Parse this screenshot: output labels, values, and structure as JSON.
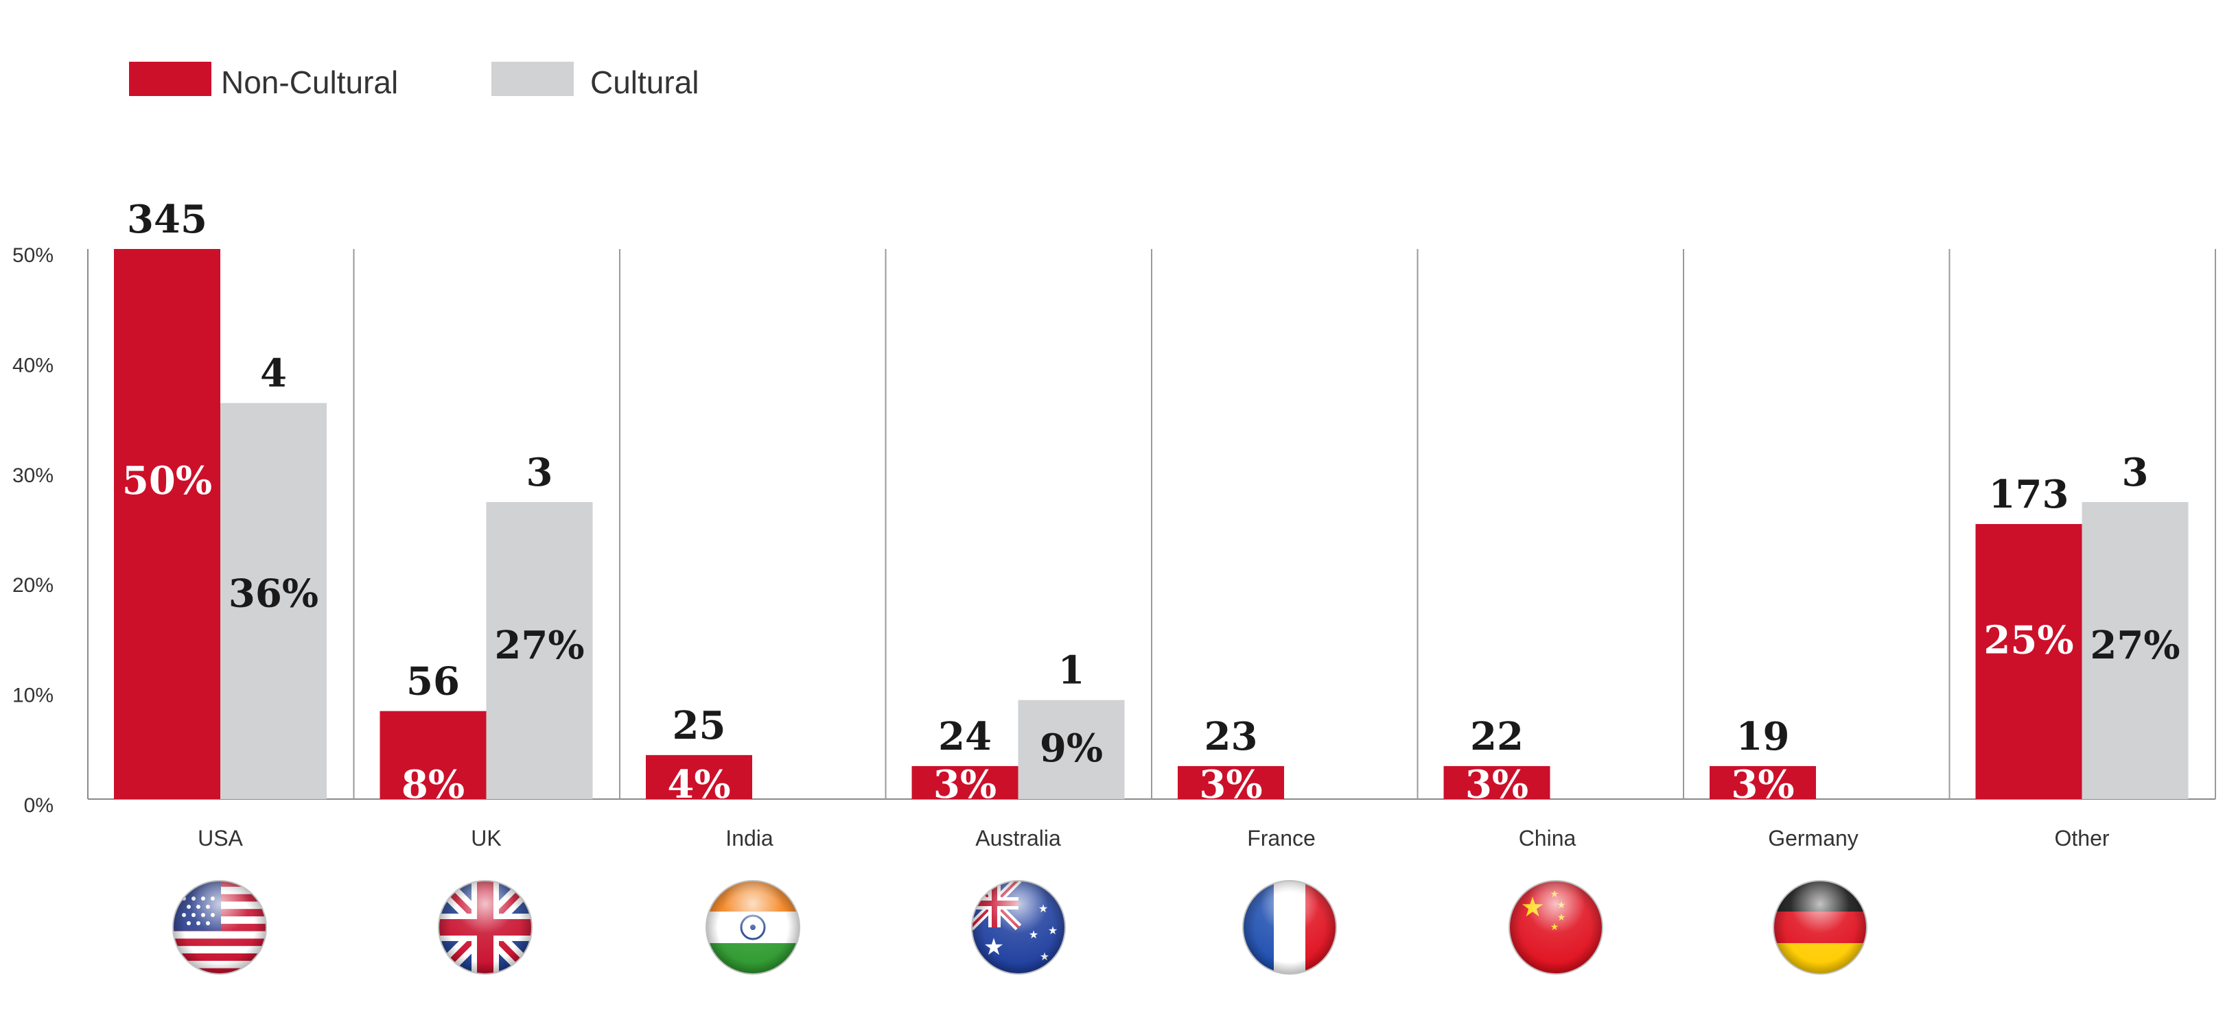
{
  "chart_data": {
    "type": "bar",
    "categories": [
      "USA",
      "UK",
      "India",
      "Australia",
      "France",
      "China",
      "Germany",
      "Other"
    ],
    "series": [
      {
        "name": "Non-Cultural",
        "color": "#cc102a",
        "values": [
          50,
          8,
          4,
          3,
          3,
          3,
          3,
          25
        ],
        "percent_labels": [
          "50%",
          "8%",
          "4%",
          "3%",
          "3%",
          "3%",
          "3%",
          "25%"
        ],
        "count_labels": [
          "345",
          "56",
          "25",
          "24",
          "23",
          "22",
          "19",
          "173"
        ]
      },
      {
        "name": "Cultural",
        "color": "#d1d2d4",
        "values": [
          36,
          27,
          null,
          9,
          null,
          null,
          null,
          27
        ],
        "percent_labels": [
          "36%",
          "27%",
          "",
          "9%",
          "",
          "",
          "",
          "27%"
        ],
        "count_labels": [
          "4",
          "3",
          "",
          "1",
          "",
          "",
          "",
          "3"
        ]
      }
    ],
    "ylim": [
      0,
      50
    ],
    "yticks": [
      0,
      10,
      20,
      30,
      40,
      50
    ],
    "ytick_labels": [
      "0%",
      "10%",
      "20%",
      "30%",
      "40%",
      "50%"
    ],
    "legend": "top-left",
    "grid": false,
    "flag_icons": [
      "usa-flag-icon",
      "uk-flag-icon",
      "india-flag-icon",
      "australia-flag-icon",
      "france-flag-icon",
      "china-flag-icon",
      "germany-flag-icon",
      null
    ]
  }
}
